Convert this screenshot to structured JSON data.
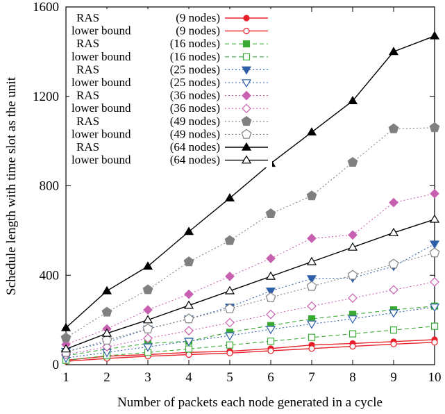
{
  "chart_data": {
    "type": "line",
    "xlabel": "Number of packets each node generated in a cycle",
    "ylabel": "Schedule length with time slot as the unit",
    "xlim": [
      1,
      10
    ],
    "ylim": [
      0,
      1600
    ],
    "xticks": [
      "1",
      "2",
      "3",
      "4",
      "5",
      "6",
      "7",
      "8",
      "9",
      "10"
    ],
    "yticks": [
      "0",
      "400",
      "800",
      "1200",
      "1600"
    ],
    "x": [
      1,
      2,
      3,
      4,
      5,
      6,
      7,
      8,
      9,
      10
    ],
    "legend_position": "top-left",
    "grid": false,
    "series": [
      {
        "name": "RAS",
        "nodes": "(9 nodes)",
        "color": "#e8202a",
        "dash": "solid",
        "marker": "circle",
        "filled": true,
        "values": [
          20,
          38,
          45,
          55,
          60,
          72,
          88,
          95,
          103,
          112
        ]
      },
      {
        "name": "lower bound",
        "nodes": "(9 nodes)",
        "color": "#e8202a",
        "dash": "solid",
        "marker": "circle",
        "filled": false,
        "values": [
          15,
          28,
          38,
          45,
          52,
          62,
          72,
          82,
          92,
          100
        ]
      },
      {
        "name": "RAS",
        "nodes": "(16 nodes)",
        "color": "#3aaa35",
        "dash": "dash",
        "marker": "square",
        "filled": true,
        "values": [
          40,
          70,
          95,
          105,
          145,
          175,
          205,
          225,
          245,
          262
        ]
      },
      {
        "name": "lower bound",
        "nodes": "(16 nodes)",
        "color": "#3aaa35",
        "dash": "dash",
        "marker": "square",
        "filled": false,
        "values": [
          20,
          40,
          55,
          70,
          88,
          105,
          122,
          138,
          155,
          172
        ]
      },
      {
        "name": "RAS",
        "nodes": "(25 nodes)",
        "color": "#2f5fa8",
        "dash": "dot",
        "marker": "triangle-down",
        "filled": true,
        "values": [
          60,
          100,
          160,
          205,
          258,
          330,
          385,
          388,
          440,
          540
        ]
      },
      {
        "name": "lower bound",
        "nodes": "(25 nodes)",
        "color": "#2f5fa8",
        "dash": "dot",
        "marker": "triangle-down",
        "filled": false,
        "values": [
          30,
          55,
          80,
          105,
          130,
          158,
          182,
          205,
          232,
          258
        ]
      },
      {
        "name": "RAS",
        "nodes": "(36 nodes)",
        "color": "#c860b0",
        "dash": "dot",
        "marker": "diamond",
        "filled": true,
        "values": [
          90,
          160,
          245,
          315,
          395,
          475,
          565,
          580,
          725,
          765
        ]
      },
      {
        "name": "lower bound",
        "nodes": "(36 nodes)",
        "color": "#c860b0",
        "dash": "dot",
        "marker": "diamond",
        "filled": false,
        "values": [
          45,
          80,
          118,
          152,
          188,
          225,
          262,
          298,
          335,
          370
        ]
      },
      {
        "name": "RAS",
        "nodes": "(49 nodes)",
        "color": "#808080",
        "dash": "dot",
        "marker": "pentagon",
        "filled": true,
        "values": [
          120,
          235,
          335,
          460,
          555,
          675,
          755,
          905,
          1055,
          1060
        ]
      },
      {
        "name": "lower bound",
        "nodes": "(49 nodes)",
        "color": "#808080",
        "dash": "dot",
        "marker": "pentagon",
        "filled": false,
        "values": [
          55,
          110,
          160,
          205,
          250,
          300,
          350,
          400,
          450,
          500
        ]
      },
      {
        "name": "RAS",
        "nodes": "(64 nodes)",
        "color": "#000000",
        "dash": "solid",
        "marker": "triangle",
        "filled": true,
        "values": [
          165,
          330,
          440,
          595,
          745,
          900,
          1040,
          1180,
          1400,
          1470
        ]
      },
      {
        "name": "lower bound",
        "nodes": "(64 nodes)",
        "color": "#000000",
        "dash": "solid",
        "marker": "triangle",
        "filled": false,
        "values": [
          70,
          140,
          200,
          265,
          330,
          395,
          460,
          525,
          590,
          650
        ]
      }
    ]
  }
}
